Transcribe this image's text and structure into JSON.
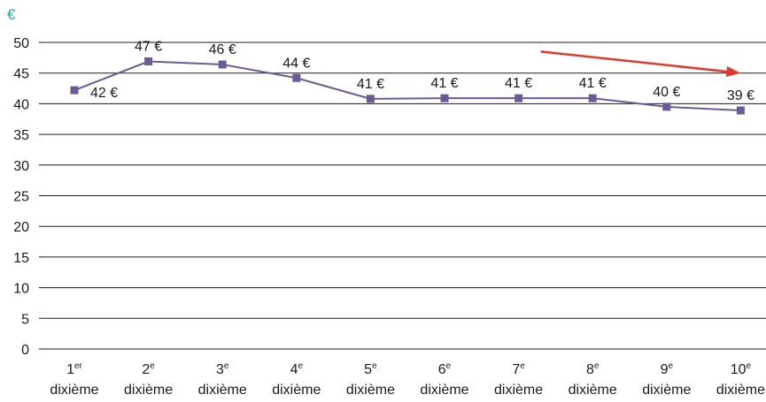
{
  "chart_data": {
    "type": "line",
    "unit_label": "€",
    "categories": [
      {
        "num": "1",
        "sup": "er",
        "word": "dixième"
      },
      {
        "num": "2",
        "sup": "e",
        "word": "dixième"
      },
      {
        "num": "3",
        "sup": "e",
        "word": "dixième"
      },
      {
        "num": "4",
        "sup": "e",
        "word": "dixième"
      },
      {
        "num": "5",
        "sup": "e",
        "word": "dixième"
      },
      {
        "num": "6",
        "sup": "e",
        "word": "dixième"
      },
      {
        "num": "7",
        "sup": "e",
        "word": "dixième"
      },
      {
        "num": "8",
        "sup": "e",
        "word": "dixième"
      },
      {
        "num": "9",
        "sup": "e",
        "word": "dixième"
      },
      {
        "num": "10",
        "sup": "e",
        "word": "dixième"
      }
    ],
    "values": [
      42.2,
      46.9,
      46.4,
      44.2,
      40.8,
      40.9,
      40.9,
      40.9,
      39.5,
      38.9
    ],
    "data_labels": [
      "42 €",
      "47 €",
      "46 €",
      "44 €",
      "41 €",
      "41 €",
      "41 €",
      "41 €",
      "40 €",
      "39 €"
    ],
    "y_ticks": [
      "0",
      "5",
      "10",
      "15",
      "20",
      "25",
      "30",
      "35",
      "40",
      "45",
      "50"
    ],
    "ylim": [
      0,
      50
    ],
    "grid": true,
    "legend": "none",
    "trend_arrow": {
      "from_category_index": 6.3,
      "from_value": 48.5,
      "to_category_index": 9.0,
      "to_value": 45.0
    },
    "colors": {
      "series": "#6b5b95",
      "grid": "#1a1a1a",
      "arrow": "#e0392b",
      "unit": "#1aa89a"
    }
  }
}
